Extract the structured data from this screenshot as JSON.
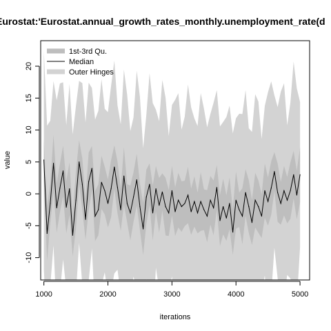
{
  "chart_data": {
    "type": "line",
    "title": "Eurostat:'Eurostat.annual_growth_rates_monthly.unemployment_rate(d",
    "xlabel": "iterations",
    "ylabel": "value",
    "xlim": [
      950,
      5150
    ],
    "ylim": [
      -13.5,
      24.0
    ],
    "xticks": [
      1000,
      2000,
      3000,
      4000,
      5000
    ],
    "yticks": [
      -10,
      -5,
      0,
      5,
      10,
      15,
      20
    ],
    "grid": false,
    "legend_position": "top-left",
    "legend": [
      {
        "label": "1st-3rd Qu.",
        "color": "#bebebe",
        "style": "thick"
      },
      {
        "label": "Median",
        "color": "#000000",
        "style": "thin"
      },
      {
        "label": "Outer Hinges",
        "color": "#d3d3d3",
        "style": "thick"
      }
    ],
    "colors": {
      "median": "#000000",
      "iqr": "#bebebe",
      "hinges": "#d3d3d3"
    },
    "series": [
      {
        "name": "Median",
        "x": [
          1000,
          1050,
          1100,
          1150,
          1200,
          1250,
          1300,
          1350,
          1400,
          1450,
          1500,
          1550,
          1600,
          1650,
          1700,
          1750,
          1800,
          1850,
          1900,
          1950,
          2000,
          2050,
          2100,
          2150,
          2200,
          2250,
          2300,
          2350,
          2400,
          2450,
          2500,
          2550,
          2600,
          2650,
          2700,
          2750,
          2800,
          2850,
          2900,
          2950,
          3000,
          3050,
          3100,
          3150,
          3200,
          3250,
          3300,
          3350,
          3400,
          3450,
          3500,
          3550,
          3600,
          3650,
          3700,
          3750,
          3800,
          3850,
          3900,
          3950,
          4000,
          4050,
          4100,
          4150,
          4200,
          4250,
          4300,
          4350,
          4400,
          4450,
          4500,
          4550,
          4600,
          4650,
          4700,
          4750,
          4800,
          4850,
          4900,
          4950,
          5000
        ],
        "values": [
          5.3,
          -6.2,
          -1.5,
          4.8,
          -2.2,
          0.9,
          3.6,
          -2.1,
          0.8,
          -6.5,
          -1.0,
          5.0,
          1.5,
          -4.0,
          1.9,
          4.0,
          -3.5,
          -2.5,
          1.8,
          0.5,
          -1.5,
          0.8,
          4.2,
          1.0,
          -2.5,
          2.8,
          -1.5,
          -3.0,
          -0.5,
          2.2,
          -2.0,
          -5.5,
          -0.5,
          1.5,
          -3.0,
          0.8,
          -1.8,
          0.3,
          -2.0,
          -3.0,
          0.5,
          -2.8,
          -1.0,
          -2.0,
          -1.5,
          -0.2,
          -2.8,
          -1.2,
          -3.0,
          -1.2,
          -2.5,
          -3.5,
          -1.0,
          -2.2,
          1.0,
          -4.2,
          -2.0,
          -3.8,
          -1.5,
          -6.0,
          -1.0,
          -2.5,
          -3.5,
          0.2,
          -2.0,
          -4.5,
          -1.0,
          -2.0,
          -3.5,
          0.5,
          -1.2,
          0.9,
          3.5,
          0.2,
          -1.5,
          0.5,
          -1.0,
          0.5,
          3.0,
          -0.2,
          3.0
        ]
      }
    ]
  }
}
